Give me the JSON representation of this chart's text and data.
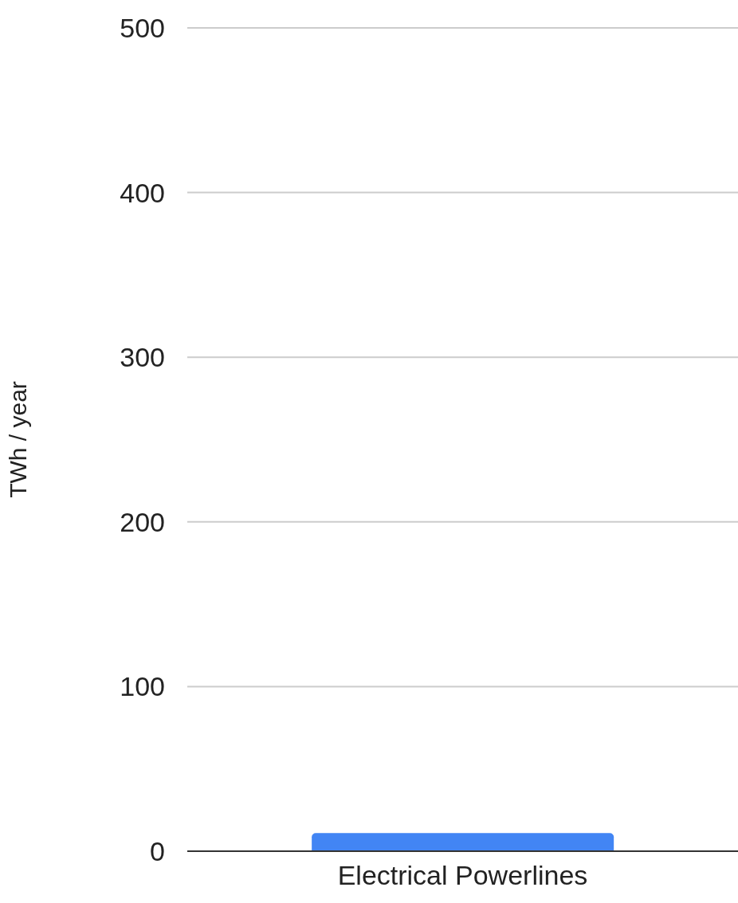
{
  "chart_data": {
    "type": "bar",
    "ylabel": "TWh / year",
    "categories": [
      "Electrical Powerlines"
    ],
    "values": [
      11
    ],
    "color": "#4285f4",
    "ylim": [
      0,
      500
    ],
    "yticks": [
      0,
      100,
      200,
      300,
      400,
      500
    ],
    "grid": "y"
  }
}
